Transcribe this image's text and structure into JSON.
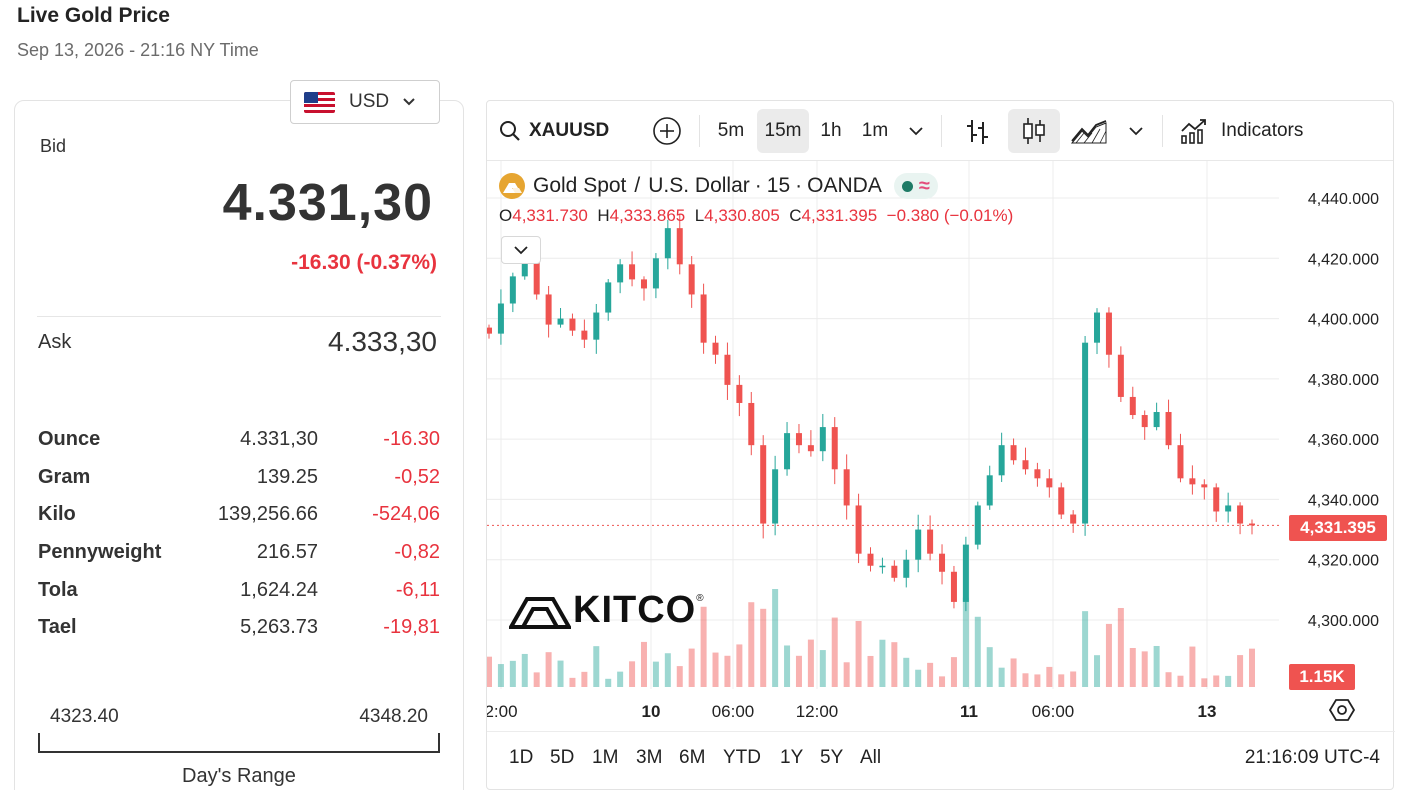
{
  "header": {
    "title": "Live Gold Price",
    "subtitle": "Sep 13, 2026 - 21:16 NY Time"
  },
  "currency": {
    "selected": "USD"
  },
  "quote": {
    "bid_label": "Bid",
    "bid": "4.331,30",
    "change": "-16.30 (-0.37%)",
    "ask_label": "Ask",
    "ask": "4.333,30"
  },
  "units": [
    {
      "name": "Ounce",
      "price": "4.331,30",
      "change": "-16.30"
    },
    {
      "name": "Gram",
      "price": "139.25",
      "change": "-0,52"
    },
    {
      "name": "Kilo",
      "price": "139,256.66",
      "change": "-524,06"
    },
    {
      "name": "Pennyweight",
      "price": "216.57",
      "change": "-0,82"
    },
    {
      "name": "Tola",
      "price": "1,624.24",
      "change": "-6,11"
    },
    {
      "name": "Tael",
      "price": "5,263.73",
      "change": "-19,81"
    }
  ],
  "day_range": {
    "low": "4323.40",
    "high": "4348.20",
    "label": "Day's Range"
  },
  "toolbar": {
    "symbol": "XAUUSD",
    "intervals": [
      "5m",
      "15m",
      "1h",
      "1m"
    ],
    "active_interval": "15m",
    "indicators_label": "Indicators"
  },
  "legend": {
    "title": "Gold Spot",
    "sep1": "/",
    "quote_ccy": "U.S. Dollar",
    "interval": "15",
    "source": "OANDA",
    "o_label": "O",
    "o": "4,331.730",
    "h_label": "H",
    "h": "4,333.865",
    "l_label": "L",
    "l": "4,330.805",
    "c_label": "C",
    "c": "4,331.395",
    "chg": "−0.380 (−0.01%)"
  },
  "watermark": "KITCO",
  "ranges": [
    "1D",
    "5D",
    "1M",
    "3M",
    "6M",
    "YTD",
    "1Y",
    "5Y",
    "All"
  ],
  "clock": "21:16:09 UTC-4",
  "colors": {
    "up": "#26a69a",
    "down": "#ef5350",
    "accent": "#e8333e",
    "gold": "#e6a531"
  },
  "chart_data": {
    "type": "candlestick",
    "y_ticks": [
      "4,440.000",
      "4,420.000",
      "4,400.000",
      "4,380.000",
      "4,360.000",
      "4,340.000",
      "4,320.000",
      "4,300.000"
    ],
    "ylim": [
      4300,
      4440
    ],
    "x_ticks": [
      "2:00",
      "10",
      "06:00",
      "12:00",
      "11",
      "06:00",
      "13"
    ],
    "last_price_label": "4,331.395",
    "last_price": 4331.395,
    "volume_label": "1.15K",
    "series": [
      {
        "name": "close",
        "values": [
          4395,
          4405,
          4414,
          4420,
          4408,
          4398,
          4400,
          4396,
          4393,
          4402,
          4412,
          4418,
          4413,
          4410,
          4420,
          4430,
          4418,
          4408,
          4392,
          4388,
          4378,
          4372,
          4358,
          4332,
          4350,
          4362,
          4358,
          4356,
          4364,
          4350,
          4338,
          4322,
          4318,
          4318,
          4314,
          4320,
          4330,
          4322,
          4316,
          4306,
          4325,
          4338,
          4348,
          4358,
          4353,
          4350,
          4347,
          4344,
          4335,
          4332,
          4392,
          4402,
          4388,
          4374,
          4368,
          4364,
          4369,
          4358,
          4347,
          4345,
          4344,
          4336,
          4338,
          4332,
          4331.395
        ]
      }
    ]
  }
}
